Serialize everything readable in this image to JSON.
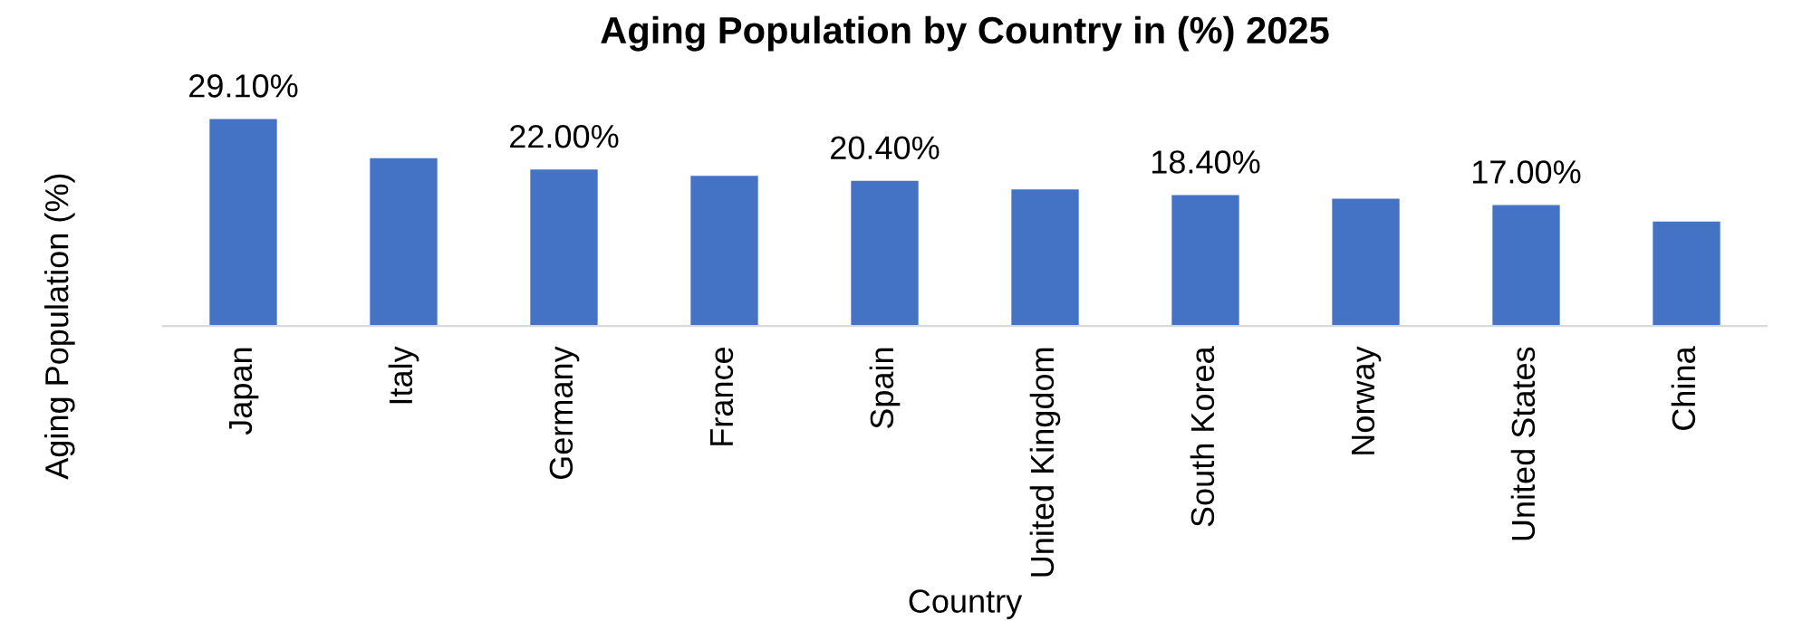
{
  "chart_data": {
    "type": "bar",
    "title": "Aging Population by Country in (%) 2025",
    "xlabel": "Country",
    "ylabel": "Aging Population (%)",
    "categories": [
      "Japan",
      "Italy",
      "Germany",
      "France",
      "Spain",
      "United Kingdom",
      "South Korea",
      "Norway",
      "United States",
      "China"
    ],
    "values": [
      29.1,
      23.6,
      22.0,
      21.1,
      20.4,
      19.2,
      18.4,
      17.9,
      17.0,
      14.7
    ],
    "value_labels": [
      "29.10%",
      null,
      "22.00%",
      null,
      "20.40%",
      null,
      "18.40%",
      null,
      "17.00%",
      null
    ],
    "color": "#4472c4",
    "grid": false,
    "legend": false
  }
}
